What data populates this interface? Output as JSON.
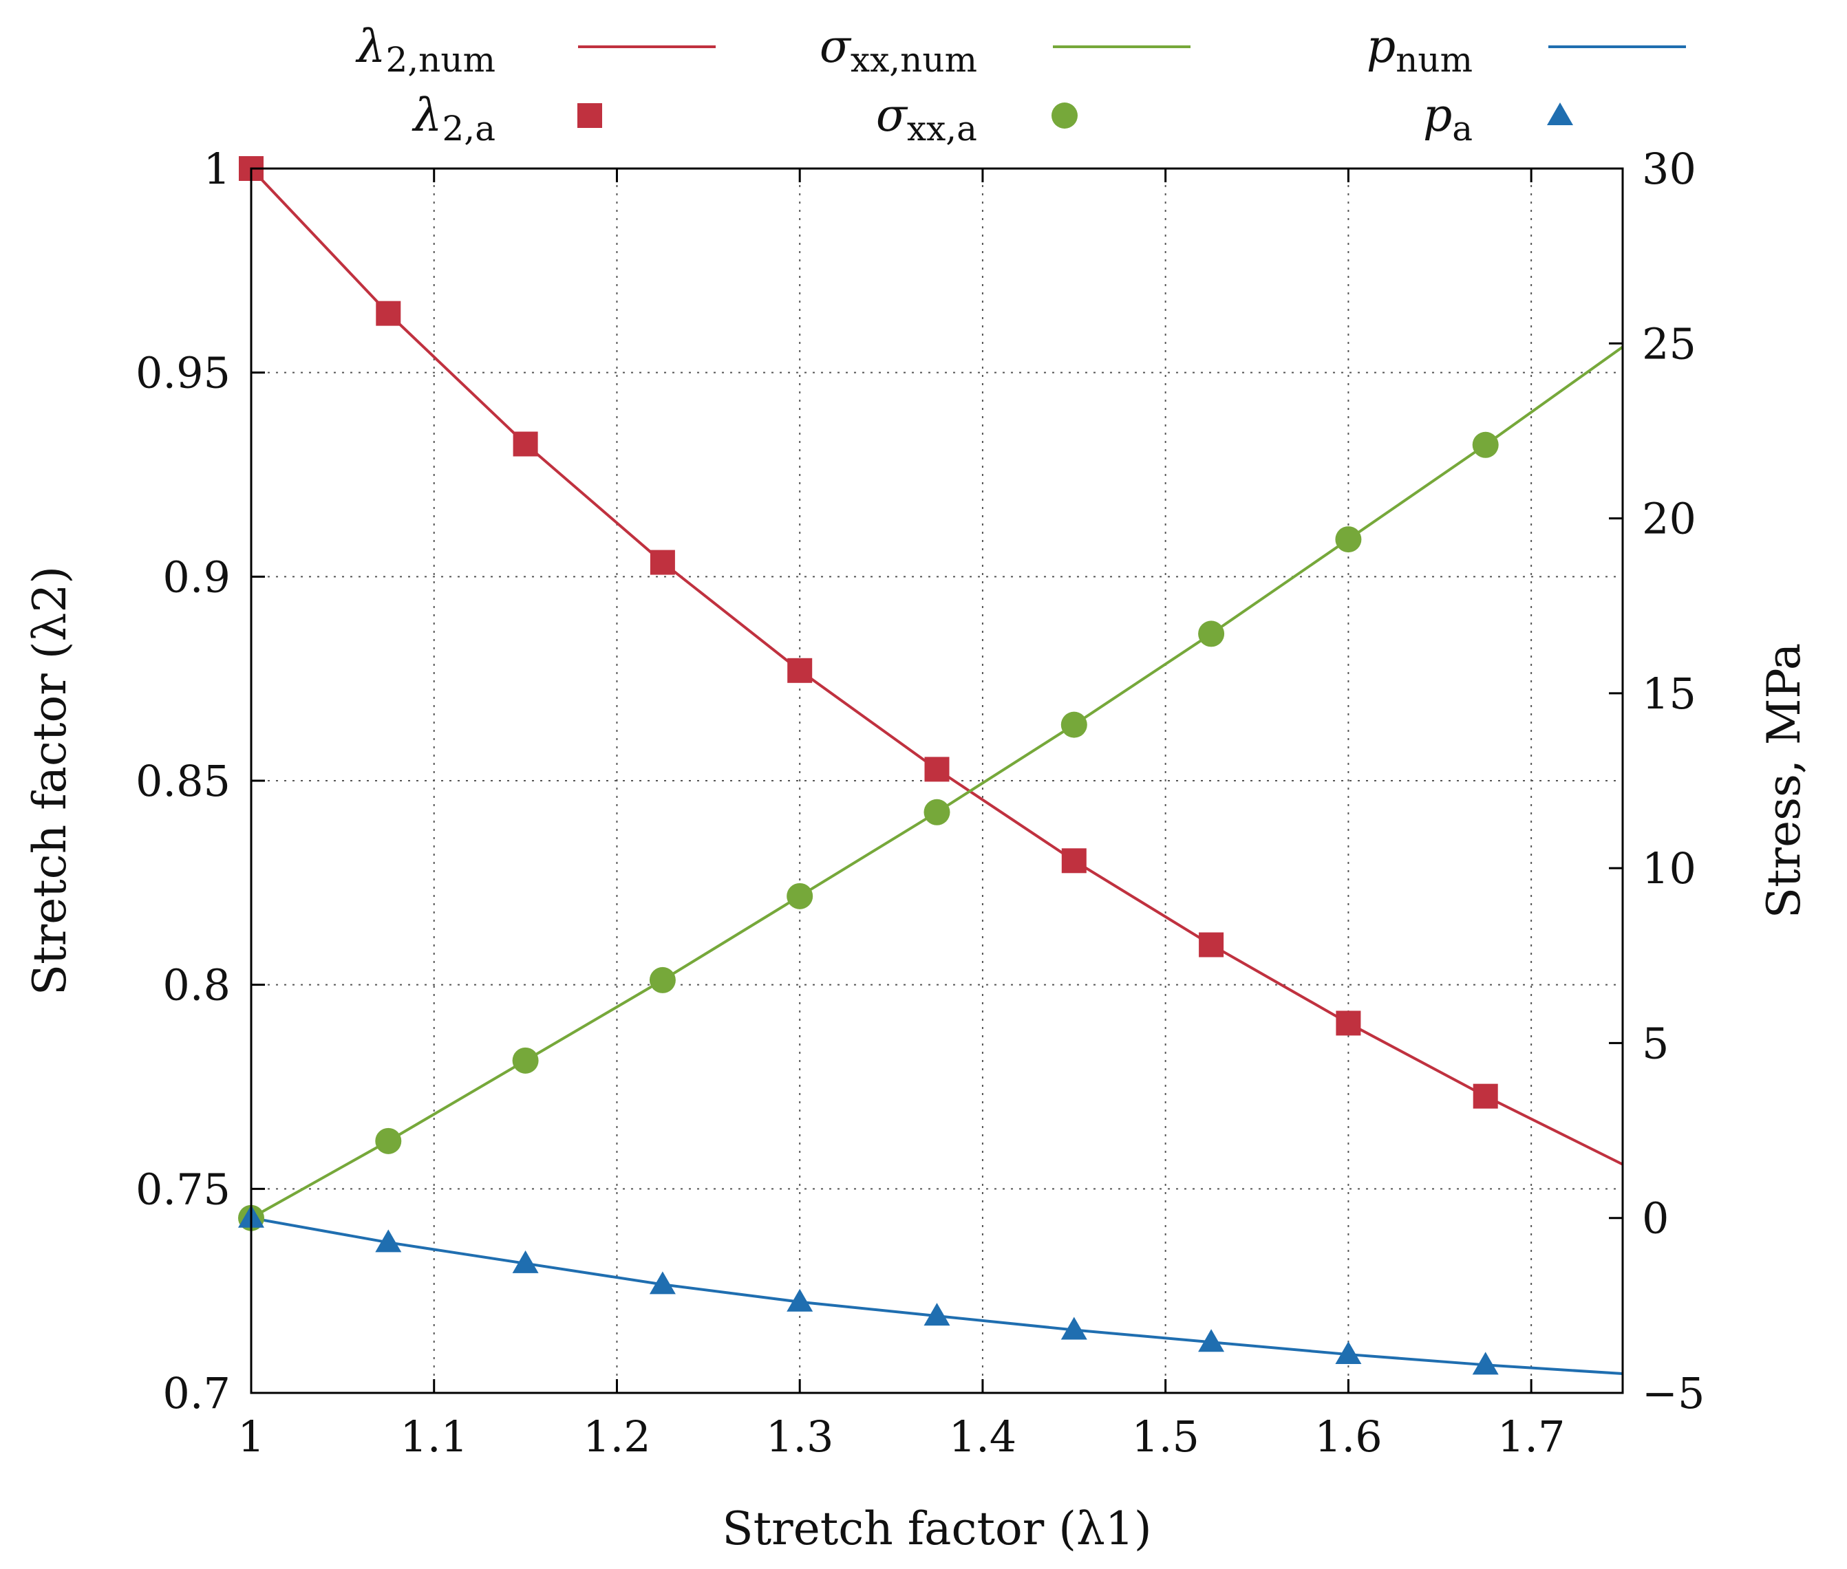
{
  "chart_data": {
    "type": "line",
    "title": "",
    "xlabel": "Stretch factor (λ1)",
    "ylabel": "Stretch factor (λ2)",
    "y2label": "Stress, MPa",
    "xlim": [
      1,
      1.75
    ],
    "ylim": [
      0.7,
      1.0
    ],
    "y2lim": [
      -5,
      30
    ],
    "xticks": [
      1,
      1.1,
      1.2,
      1.3,
      1.4,
      1.5,
      1.6,
      1.7
    ],
    "xtick_labels": [
      "1",
      "1.1",
      "1.2",
      "1.3",
      "1.4",
      "1.5",
      "1.6",
      "1.7"
    ],
    "yticks": [
      0.7,
      0.75,
      0.8,
      0.85,
      0.9,
      0.95,
      1.0
    ],
    "ytick_labels": [
      "0.7",
      "0.75",
      "0.8",
      "0.85",
      "0.9",
      "0.95",
      "1"
    ],
    "y2ticks": [
      -5,
      0,
      5,
      10,
      15,
      20,
      25,
      30
    ],
    "y2tick_labels": [
      "−5",
      "0",
      "5",
      "10",
      "15",
      "20",
      "25",
      "30"
    ],
    "grid": true,
    "legend_position": "top",
    "x_markers": [
      1.0,
      1.075,
      1.15,
      1.225,
      1.3,
      1.375,
      1.45,
      1.525,
      1.6,
      1.675
    ],
    "series": [
      {
        "name": "λ2,num",
        "legend": {
          "symbol": "λ",
          "sub": "2,num"
        },
        "kind": "line",
        "axis": "left",
        "color": "#c0313f",
        "x": [
          1.0,
          1.075,
          1.15,
          1.225,
          1.3,
          1.375,
          1.45,
          1.525,
          1.6,
          1.675,
          1.75
        ],
        "values": [
          1.0,
          0.9645,
          0.9325,
          0.9035,
          0.877,
          0.8528,
          0.8304,
          0.8098,
          0.7906,
          0.7727,
          0.756
        ]
      },
      {
        "name": "σxx,num",
        "legend": {
          "symbol": "σ",
          "sub": "xx,num"
        },
        "kind": "line",
        "axis": "right",
        "color": "#76a83a",
        "x": [
          1.0,
          1.075,
          1.15,
          1.225,
          1.3,
          1.375,
          1.45,
          1.525,
          1.6,
          1.675,
          1.75
        ],
        "values": [
          0.0,
          2.2,
          4.5,
          6.8,
          9.2,
          11.6,
          14.1,
          16.7,
          19.4,
          22.1,
          24.9
        ]
      },
      {
        "name": "pnum",
        "legend": {
          "symbol": "p",
          "sub": "num"
        },
        "kind": "line",
        "axis": "right",
        "color": "#1f6eb0",
        "x": [
          1.0,
          1.075,
          1.15,
          1.225,
          1.3,
          1.375,
          1.45,
          1.525,
          1.6,
          1.675,
          1.75
        ],
        "values": [
          0.0,
          -0.7,
          -1.3,
          -1.9,
          -2.4,
          -2.8,
          -3.2,
          -3.55,
          -3.9,
          -4.2,
          -4.45
        ]
      },
      {
        "name": "λ2,a",
        "legend": {
          "symbol": "λ",
          "sub": "2,a"
        },
        "kind": "square",
        "axis": "left",
        "color": "#c0313f",
        "x": [
          1.0,
          1.075,
          1.15,
          1.225,
          1.3,
          1.375,
          1.45,
          1.525,
          1.6,
          1.675
        ],
        "values": [
          1.0,
          0.9645,
          0.9325,
          0.9035,
          0.877,
          0.8528,
          0.8304,
          0.8098,
          0.7906,
          0.7727
        ]
      },
      {
        "name": "σxx,a",
        "legend": {
          "symbol": "σ",
          "sub": "xx,a"
        },
        "kind": "circle",
        "axis": "right",
        "color": "#76a83a",
        "x": [
          1.0,
          1.075,
          1.15,
          1.225,
          1.3,
          1.375,
          1.45,
          1.525,
          1.6,
          1.675
        ],
        "values": [
          0.0,
          2.2,
          4.5,
          6.8,
          9.2,
          11.6,
          14.1,
          16.7,
          19.4,
          22.1
        ]
      },
      {
        "name": "pa",
        "legend": {
          "symbol": "p",
          "sub": "a"
        },
        "kind": "triangle",
        "axis": "right",
        "color": "#1f6eb0",
        "x": [
          1.0,
          1.075,
          1.15,
          1.225,
          1.3,
          1.375,
          1.45,
          1.525,
          1.6,
          1.675
        ],
        "values": [
          0.0,
          -0.7,
          -1.3,
          -1.9,
          -2.4,
          -2.8,
          -3.2,
          -3.55,
          -3.9,
          -4.2
        ]
      }
    ]
  }
}
